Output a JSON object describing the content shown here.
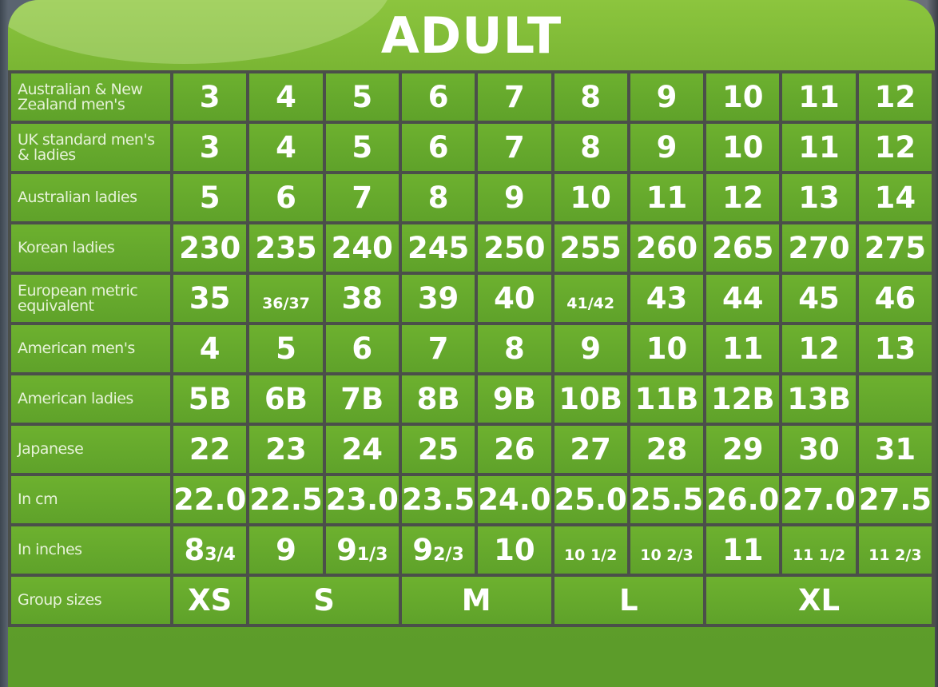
{
  "title": "ADULT",
  "colors": {
    "panel_green": "#6aa82e",
    "grid_line": "#4b4f4a",
    "text": "#ffffff"
  },
  "rows": [
    {
      "label": "Australian & New Zealand men's",
      "values": [
        {
          "v": "3"
        },
        {
          "v": "4"
        },
        {
          "v": "5"
        },
        {
          "v": "6"
        },
        {
          "v": "7"
        },
        {
          "v": "8"
        },
        {
          "v": "9"
        },
        {
          "v": "10"
        },
        {
          "v": "11"
        },
        {
          "v": "12"
        }
      ]
    },
    {
      "label": "UK standard men's & ladies",
      "values": [
        {
          "v": "3"
        },
        {
          "v": "4"
        },
        {
          "v": "5"
        },
        {
          "v": "6"
        },
        {
          "v": "7"
        },
        {
          "v": "8"
        },
        {
          "v": "9"
        },
        {
          "v": "10"
        },
        {
          "v": "11"
        },
        {
          "v": "12"
        }
      ]
    },
    {
      "label": "Australian ladies",
      "values": [
        {
          "v": "5"
        },
        {
          "v": "6"
        },
        {
          "v": "7"
        },
        {
          "v": "8"
        },
        {
          "v": "9"
        },
        {
          "v": "10"
        },
        {
          "v": "11"
        },
        {
          "v": "12"
        },
        {
          "v": "13"
        },
        {
          "v": "14"
        }
      ]
    },
    {
      "label": "Korean ladies",
      "values": [
        {
          "v": "230"
        },
        {
          "v": "235"
        },
        {
          "v": "240"
        },
        {
          "v": "245"
        },
        {
          "v": "250"
        },
        {
          "v": "255"
        },
        {
          "v": "260"
        },
        {
          "v": "265"
        },
        {
          "v": "270"
        },
        {
          "v": "275"
        }
      ]
    },
    {
      "label": "European metric equivalent",
      "values": [
        {
          "v": "35"
        },
        {
          "v": "36/37",
          "small": true
        },
        {
          "v": "38"
        },
        {
          "v": "39"
        },
        {
          "v": "40"
        },
        {
          "v": "41/42",
          "small": true
        },
        {
          "v": "43"
        },
        {
          "v": "44"
        },
        {
          "v": "45"
        },
        {
          "v": "46"
        }
      ]
    },
    {
      "label": "American men's",
      "values": [
        {
          "v": "4"
        },
        {
          "v": "5"
        },
        {
          "v": "6"
        },
        {
          "v": "7"
        },
        {
          "v": "8"
        },
        {
          "v": "9"
        },
        {
          "v": "10"
        },
        {
          "v": "11"
        },
        {
          "v": "12"
        },
        {
          "v": "13"
        }
      ]
    },
    {
      "label": "American ladies",
      "values": [
        {
          "v": "5B"
        },
        {
          "v": "6B"
        },
        {
          "v": "7B"
        },
        {
          "v": "8B"
        },
        {
          "v": "9B"
        },
        {
          "v": "10B"
        },
        {
          "v": "11B"
        },
        {
          "v": "12B"
        },
        {
          "v": "13B"
        },
        {
          "v": ""
        }
      ]
    },
    {
      "label": "Japanese",
      "values": [
        {
          "v": "22"
        },
        {
          "v": "23"
        },
        {
          "v": "24"
        },
        {
          "v": "25"
        },
        {
          "v": "26"
        },
        {
          "v": "27"
        },
        {
          "v": "28"
        },
        {
          "v": "29"
        },
        {
          "v": "30"
        },
        {
          "v": "31"
        }
      ]
    },
    {
      "label": "In cm",
      "values": [
        {
          "v": "22.0"
        },
        {
          "v": "22.5"
        },
        {
          "v": "23.0"
        },
        {
          "v": "23.5"
        },
        {
          "v": "24.0"
        },
        {
          "v": "25.0"
        },
        {
          "v": "25.5"
        },
        {
          "v": "26.0"
        },
        {
          "v": "27.0"
        },
        {
          "v": "27.5"
        }
      ]
    },
    {
      "label": "In inches",
      "values": [
        {
          "v": "8",
          "frac": "3/4"
        },
        {
          "v": "9"
        },
        {
          "v": "9",
          "frac": "1/3"
        },
        {
          "v": "9",
          "frac": "2/3"
        },
        {
          "v": "10"
        },
        {
          "v": "10 1/2",
          "small": true
        },
        {
          "v": "10 2/3",
          "small": true
        },
        {
          "v": "11"
        },
        {
          "v": "11 1/2",
          "small": true
        },
        {
          "v": "11 2/3",
          "small": true
        }
      ]
    }
  ],
  "group_sizes": {
    "label": "Group sizes",
    "groups": [
      {
        "name": "XS",
        "span": 1
      },
      {
        "name": "S",
        "span": 2
      },
      {
        "name": "M",
        "span": 2
      },
      {
        "name": "L",
        "span": 2
      },
      {
        "name": "XL",
        "span": 3
      }
    ]
  }
}
